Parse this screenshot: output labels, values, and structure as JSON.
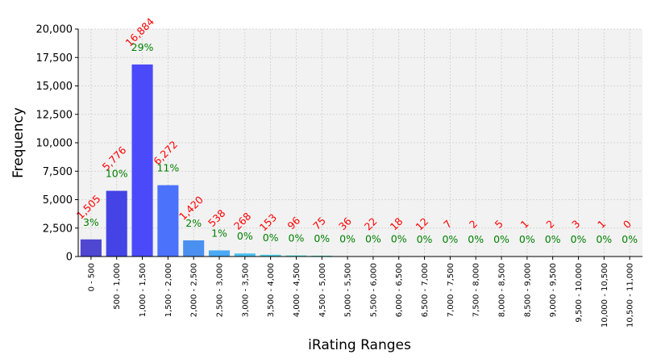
{
  "chart_data": {
    "type": "bar",
    "xlabel": "iRating Ranges",
    "ylabel": "Frequency",
    "ylim": [
      0,
      20000
    ],
    "yticks": [
      0,
      2500,
      5000,
      7500,
      10000,
      12500,
      15000,
      17500,
      20000
    ],
    "ytick_labels": [
      "0",
      "2,500",
      "5,000",
      "7,500",
      "10,000",
      "12,500",
      "15,000",
      "17,500",
      "20,000"
    ],
    "grid": true,
    "categories": [
      "0 - 500",
      "500 - 1,000",
      "1,000 - 1,500",
      "1,500 - 2,000",
      "2,000 - 2,500",
      "2,500 - 3,000",
      "3,000 - 3,500",
      "3,500 - 4,000",
      "4,000 - 4,500",
      "4,500 - 5,000",
      "5,000 - 5,500",
      "5,500 - 6,000",
      "6,000 - 6,500",
      "6,500 - 7,000",
      "7,000 - 7,500",
      "7,500 - 8,000",
      "8,000 - 8,500",
      "8,500 - 9,000",
      "9,000 - 9,500",
      "9,500 - 10,000",
      "10,000 - 10,500",
      "10,500 - 11,000"
    ],
    "values": [
      1505,
      5776,
      16884,
      6272,
      1420,
      538,
      268,
      153,
      96,
      75,
      36,
      22,
      18,
      12,
      7,
      2,
      5,
      1,
      2,
      3,
      1,
      0
    ],
    "value_labels": [
      "1,505",
      "5,776",
      "16,884",
      "6,272",
      "1,420",
      "538",
      "268",
      "153",
      "96",
      "75",
      "36",
      "22",
      "18",
      "12",
      "7",
      "2",
      "5",
      "1",
      "2",
      "3",
      "1",
      "0"
    ],
    "percent_labels": [
      "3%",
      "10%",
      "29%",
      "11%",
      "2%",
      "1%",
      "0%",
      "0%",
      "0%",
      "0%",
      "0%",
      "0%",
      "0%",
      "0%",
      "0%",
      "0%",
      "0%",
      "0%",
      "0%",
      "0%",
      "0%",
      "0%"
    ],
    "colors": [
      "#4f46d2",
      "#4343e6",
      "#4a4afa",
      "#4a72fa",
      "#4a90f0",
      "#4aaaf5",
      "#4ac0f0",
      "#4ad0e8",
      "#4adcd8",
      "#4ae0c0",
      "#4ae0a8",
      "#58e090",
      "#70e078",
      "#88e060",
      "#a0e050",
      "#b8e048",
      "#cce040",
      "#dcd838",
      "#e8c830",
      "#f0b828",
      "#f0a020",
      "#f08818"
    ],
    "plot_background": "#f2f2f2",
    "count_label_color": "#ff0000",
    "percent_label_color": "#008000"
  }
}
